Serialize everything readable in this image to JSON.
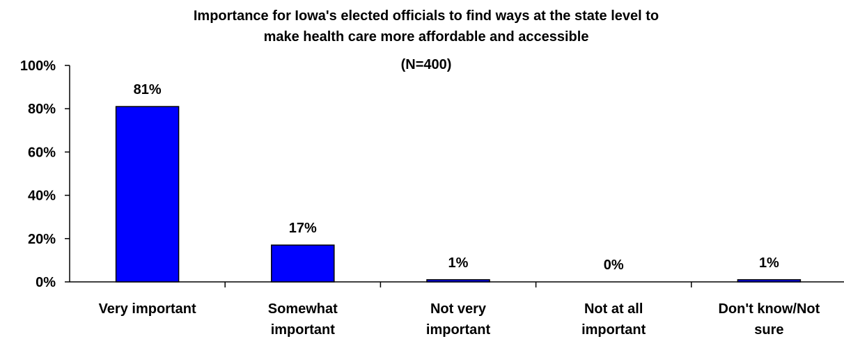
{
  "chart_data": {
    "type": "bar",
    "title_lines": [
      "Importance for Iowa's elected officials to find ways at the state level to",
      "make health care more affordable and accessible",
      "(N=400)"
    ],
    "categories": [
      [
        "Very important"
      ],
      [
        "Somewhat",
        "important"
      ],
      [
        "Not very",
        "important"
      ],
      [
        "Not at all",
        "important"
      ],
      [
        "Don't know/Not",
        "sure"
      ]
    ],
    "values": [
      81,
      17,
      1,
      0,
      1
    ],
    "value_labels": [
      "81%",
      "17%",
      "1%",
      "0%",
      "1%"
    ],
    "yticks": [
      "0%",
      "20%",
      "40%",
      "60%",
      "80%",
      "100%"
    ],
    "ylim": [
      0,
      100
    ],
    "xlabel": "",
    "ylabel": "",
    "grid": false,
    "legend": "none",
    "bar_color": "#0000FF"
  }
}
